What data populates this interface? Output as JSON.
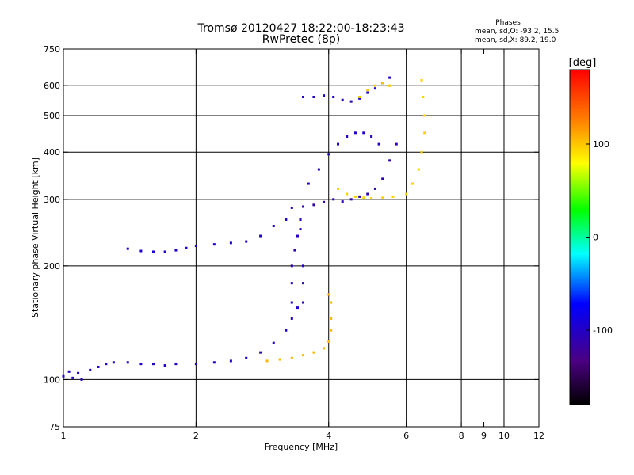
{
  "chart_data": {
    "type": "scatter",
    "title": "Tromsø 20120427 18:22:00-18:23:43",
    "subtitle": "RwPretec (8p)",
    "xlabel": "Frequency [MHz]",
    "ylabel": "Stationary phase Virtual Height [km]",
    "x_scale": "log",
    "y_scale": "log",
    "xlim": [
      1,
      12
    ],
    "ylim": [
      75,
      750
    ],
    "x_ticks": [
      1,
      2,
      4,
      6,
      8,
      10,
      12
    ],
    "x_tick_labels": [
      "1",
      "2",
      "4",
      "6",
      "8",
      "10",
      "12"
    ],
    "x_minor_ticks": [
      9
    ],
    "x_minor_tick_labels": [
      "9"
    ],
    "y_ticks": [
      75,
      100,
      200,
      300,
      400,
      500,
      600,
      750
    ],
    "y_tick_labels": [
      "75",
      "100",
      "200",
      "300",
      "400",
      "500",
      "600",
      "750"
    ],
    "x_grid_lines": [
      2,
      4,
      6,
      8,
      10
    ],
    "y_grid_lines": [
      100,
      200,
      300,
      400,
      500,
      600
    ],
    "grid": true,
    "phase_box": {
      "title": "Phases",
      "line1": "mean, sd,O: -93.2, 15.5",
      "line2": "mean, sd,X:  89.2, 19.0"
    },
    "colorbar": {
      "label": "[deg]",
      "range": [
        -180,
        180
      ],
      "ticks": [
        100,
        0,
        -100
      ],
      "tick_labels": [
        "100",
        "0",
        "-100"
      ],
      "stops": [
        "#000000",
        "#4b0082",
        "#0000ff",
        "#00ffff",
        "#00ff00",
        "#ffff00",
        "#ff7f00",
        "#ff0000"
      ]
    },
    "series": [
      {
        "phase": -100,
        "points": [
          [
            1.0,
            102
          ],
          [
            1.03,
            105
          ],
          [
            1.05,
            101
          ],
          [
            1.08,
            104
          ],
          [
            1.1,
            100
          ],
          [
            1.15,
            106
          ],
          [
            1.2,
            108
          ],
          [
            1.25,
            110
          ],
          [
            1.3,
            111
          ],
          [
            1.4,
            111
          ],
          [
            1.5,
            110
          ],
          [
            1.6,
            110
          ],
          [
            1.7,
            109
          ],
          [
            1.8,
            110
          ],
          [
            2.0,
            110
          ],
          [
            2.2,
            111
          ],
          [
            2.4,
            112
          ],
          [
            2.6,
            114
          ],
          [
            2.8,
            118
          ],
          [
            3.0,
            125
          ],
          [
            3.2,
            135
          ],
          [
            3.3,
            145
          ],
          [
            3.4,
            155
          ]
        ]
      },
      {
        "phase": -105,
        "points": [
          [
            3.3,
            160
          ],
          [
            3.3,
            180
          ],
          [
            3.3,
            200
          ],
          [
            3.35,
            220
          ],
          [
            3.4,
            240
          ],
          [
            3.45,
            250
          ],
          [
            3.45,
            265
          ],
          [
            3.5,
            200
          ],
          [
            3.5,
            180
          ],
          [
            3.5,
            160
          ]
        ]
      },
      {
        "phase": -95,
        "points": [
          [
            1.4,
            222
          ],
          [
            1.5,
            219
          ],
          [
            1.6,
            218
          ],
          [
            1.7,
            218
          ],
          [
            1.8,
            220
          ],
          [
            1.9,
            223
          ],
          [
            2.0,
            226
          ],
          [
            2.2,
            228
          ],
          [
            2.4,
            230
          ],
          [
            2.6,
            232
          ],
          [
            2.8,
            240
          ],
          [
            3.0,
            255
          ],
          [
            3.2,
            265
          ]
        ]
      },
      {
        "phase": -110,
        "points": [
          [
            3.3,
            285
          ],
          [
            3.5,
            287
          ],
          [
            3.7,
            290
          ],
          [
            3.9,
            295
          ],
          [
            4.1,
            300
          ],
          [
            4.3,
            296
          ],
          [
            4.5,
            300
          ],
          [
            4.7,
            305
          ],
          [
            4.9,
            310
          ],
          [
            5.1,
            320
          ],
          [
            5.3,
            340
          ],
          [
            5.5,
            380
          ],
          [
            5.7,
            420
          ]
        ]
      },
      {
        "phase": -100,
        "points": [
          [
            3.6,
            330
          ],
          [
            3.8,
            360
          ],
          [
            4.0,
            395
          ],
          [
            4.2,
            420
          ],
          [
            4.4,
            440
          ],
          [
            4.6,
            450
          ],
          [
            4.8,
            450
          ],
          [
            5.0,
            440
          ],
          [
            5.2,
            420
          ]
        ]
      },
      {
        "phase": -100,
        "points": [
          [
            3.5,
            560
          ],
          [
            3.7,
            560
          ],
          [
            3.9,
            565
          ],
          [
            4.1,
            560
          ],
          [
            4.3,
            550
          ],
          [
            4.5,
            545
          ],
          [
            4.7,
            555
          ],
          [
            4.9,
            575
          ],
          [
            5.1,
            590
          ],
          [
            5.3,
            610
          ],
          [
            5.5,
            630
          ]
        ]
      },
      {
        "phase": 105,
        "points": [
          [
            2.9,
            112
          ],
          [
            3.1,
            113
          ],
          [
            3.3,
            114
          ],
          [
            3.5,
            116
          ],
          [
            3.7,
            118
          ],
          [
            3.9,
            121
          ],
          [
            4.0,
            126
          ],
          [
            4.05,
            135
          ],
          [
            4.05,
            145
          ],
          [
            4.05,
            160
          ],
          [
            4.0,
            168
          ]
        ]
      },
      {
        "phase": 95,
        "points": [
          [
            4.2,
            320
          ],
          [
            4.4,
            310
          ],
          [
            4.6,
            305
          ],
          [
            4.8,
            303
          ],
          [
            5.0,
            302
          ],
          [
            5.3,
            303
          ],
          [
            5.6,
            305
          ],
          [
            6.0,
            310
          ],
          [
            6.2,
            330
          ],
          [
            6.4,
            360
          ],
          [
            6.5,
            400
          ],
          [
            6.6,
            450
          ],
          [
            6.6,
            500
          ],
          [
            6.55,
            560
          ],
          [
            6.5,
            620
          ]
        ]
      },
      {
        "phase": 100,
        "points": [
          [
            4.7,
            560
          ],
          [
            4.9,
            585
          ],
          [
            5.1,
            600
          ],
          [
            5.3,
            610
          ],
          [
            5.5,
            600
          ]
        ]
      }
    ]
  }
}
